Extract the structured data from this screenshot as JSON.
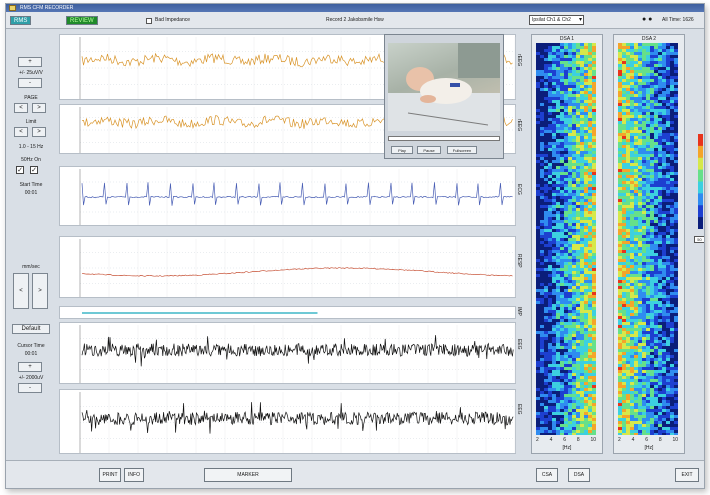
{
  "window": {
    "title": "RMS CFM RECORDER"
  },
  "topbar": {
    "rms_label": "RMS",
    "review_label": "REVIEW",
    "impedance_label": "Bad Impedance",
    "record_name": "Record 2 Jakobsmile Hsw",
    "montage_select": "Ipsilat Ch1 & Ch2",
    "alltime_label": "All Time: 1626"
  },
  "leftpanel": {
    "gain_value": "+/- 25uV/V",
    "pager_label": "PAGE",
    "limit_label": "Limit",
    "range_label": "1.0 - 15 Hz",
    "filter_labels": [
      "50Hz",
      "On"
    ],
    "start_time_label": "Start Time",
    "start_time_value": "00:01",
    "speed_label": "mm/sec",
    "default_label": "Default",
    "cursor_time_label": "Cursor Time",
    "cursor_time_value": "00:01",
    "gain2_value": "+/- 2000uV"
  },
  "plots": [
    {
      "name": "rEEG1",
      "unit_label": "[µV]",
      "ylabel": "rEEG",
      "color": "#d9952b"
    },
    {
      "name": "rEEG2",
      "unit_label": "[µV]",
      "ylabel": "rEEG",
      "color": "#d9952b"
    },
    {
      "name": "ECG",
      "unit_label": "[µV]",
      "ylabel": "ECG",
      "color": "#4a5fb5"
    },
    {
      "name": "RESP",
      "unit_label": "",
      "ylabel": "RESP",
      "color": "#c8553a"
    },
    {
      "name": "IMP",
      "unit_label": "",
      "ylabel": "IMP",
      "color": "#3fb7c7"
    },
    {
      "name": "EEG1",
      "unit_label": "[µV]",
      "ylabel": "EEG",
      "color": "#111111"
    },
    {
      "name": "EEG2",
      "unit_label": "[µV]",
      "ylabel": "EEG",
      "color": "#111111"
    }
  ],
  "eeg_time_labels": [
    "00:01",
    "00:01",
    "00:01"
  ],
  "video": {
    "buttons": [
      "Play",
      "Pause",
      "Fullscreen"
    ]
  },
  "dsa": [
    {
      "title": "DSA 1",
      "ticks": [
        "2",
        "4",
        "6",
        "8",
        "10"
      ],
      "unit": "[Hz]"
    },
    {
      "title": "DSA 2",
      "ticks": [
        "2",
        "4",
        "6",
        "8",
        "10"
      ],
      "unit": "[Hz]"
    }
  ],
  "colorbar_value": "50",
  "bottombar": {
    "print_label": "PRINT",
    "info_label": "INFO",
    "marker_label": "MARKER",
    "csa_label": "CSA",
    "dsa_label": "DSA",
    "exit_label": "EXIT"
  }
}
